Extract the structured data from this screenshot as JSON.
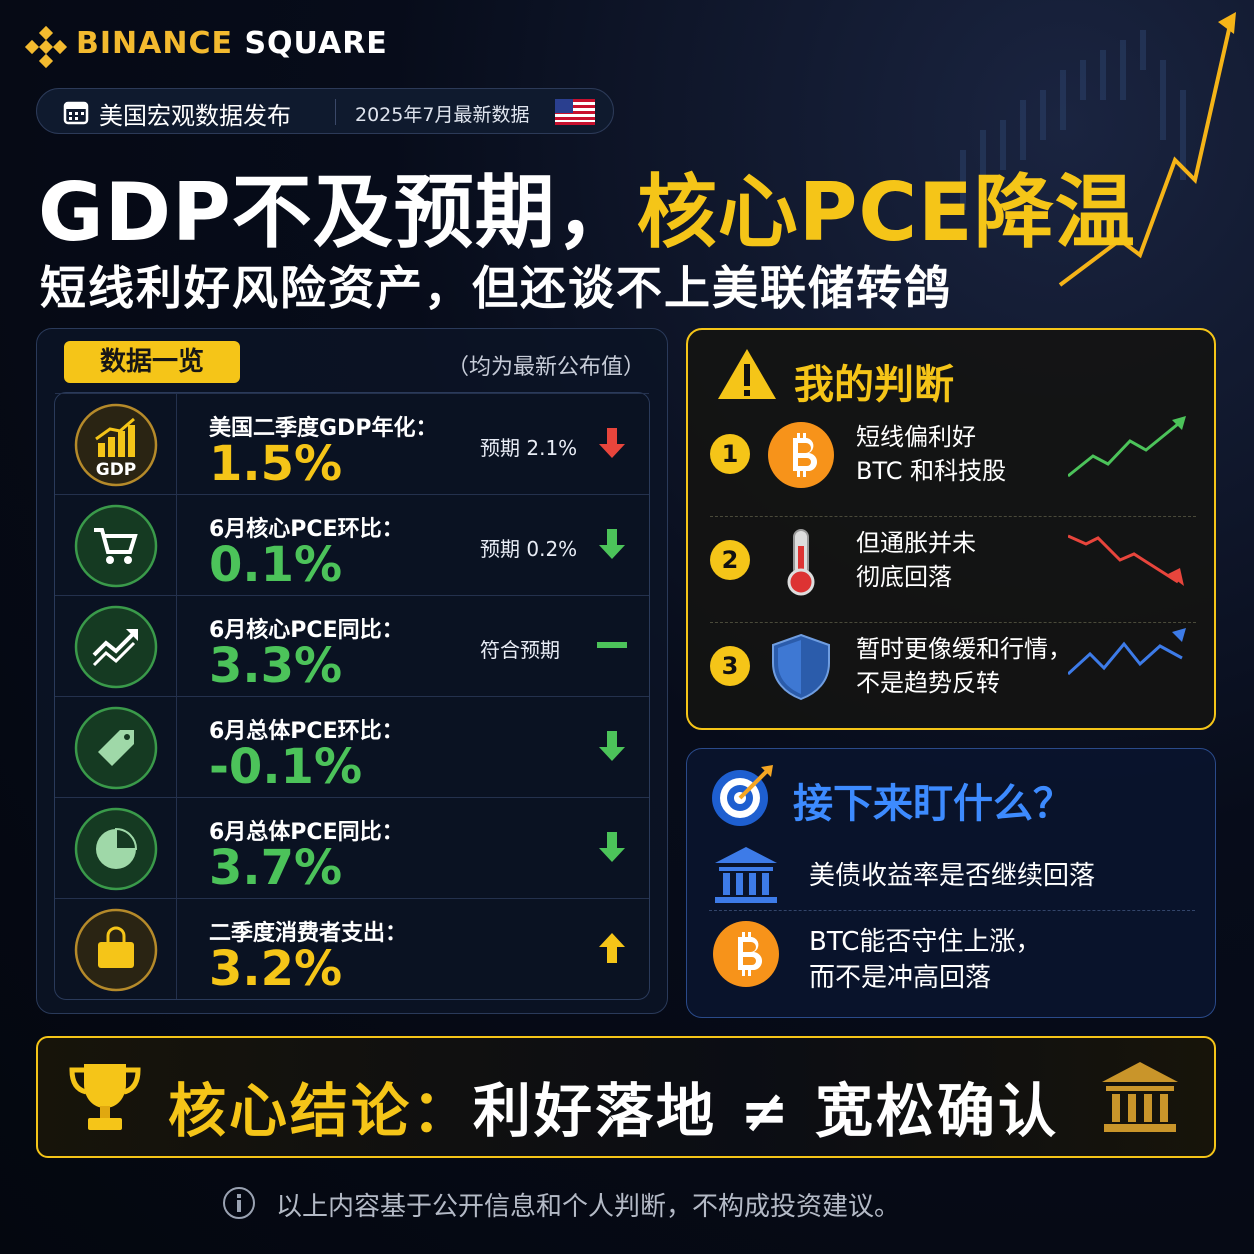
{
  "brand": {
    "name_accent": "BINANCE",
    "name_rest": "SQUARE"
  },
  "tag": {
    "label": "美国宏观数据发布",
    "date": "2025年7月最新数据"
  },
  "headline": {
    "part1": "GDP不及预期，",
    "part2": "核心PCE降温"
  },
  "subtitle": "短线利好风险资产，但还谈不上美联储转鸽",
  "data_panel": {
    "title": "数据一览",
    "note": "（均为最新公布值）",
    "rows": [
      {
        "icon_text": "GDP",
        "label": "美国二季度GDP年化：",
        "value": "1.5%",
        "expectation": "预期 2.1%"
      },
      {
        "label": "6月核心PCE环比：",
        "value": "0.1%",
        "expectation": "预期 0.2%"
      },
      {
        "label": "6月核心PCE同比：",
        "value": "3.3%",
        "expectation": "符合预期"
      },
      {
        "label": "6月总体PCE环比：",
        "value": "-0.1%"
      },
      {
        "label": "6月总体PCE同比：",
        "value": "3.7%"
      },
      {
        "label": "二季度消费者支出：",
        "value": "3.2%"
      }
    ]
  },
  "judgment": {
    "title": "我的判断",
    "items": [
      {
        "number": "1",
        "lines": [
          "短线偏利好",
          "BTC 和科技股"
        ]
      },
      {
        "number": "2",
        "lines": [
          "但通胀并未",
          "彻底回落"
        ]
      },
      {
        "number": "3",
        "lines": [
          "暂时更像缓和行情，",
          "不是趋势反转"
        ]
      }
    ]
  },
  "watch": {
    "title": "接下来盯什么？",
    "items": [
      {
        "lines": [
          "美债收益率是否继续回落"
        ]
      },
      {
        "lines": [
          "BTC能否守住上涨，",
          "而不是冲高回落"
        ]
      }
    ]
  },
  "conclusion": {
    "label": "核心结论：",
    "text": "利好落地 ≠ 宽松确认"
  },
  "disclaimer": "以上内容基于公开信息和个人判断，不构成投资建议。"
}
